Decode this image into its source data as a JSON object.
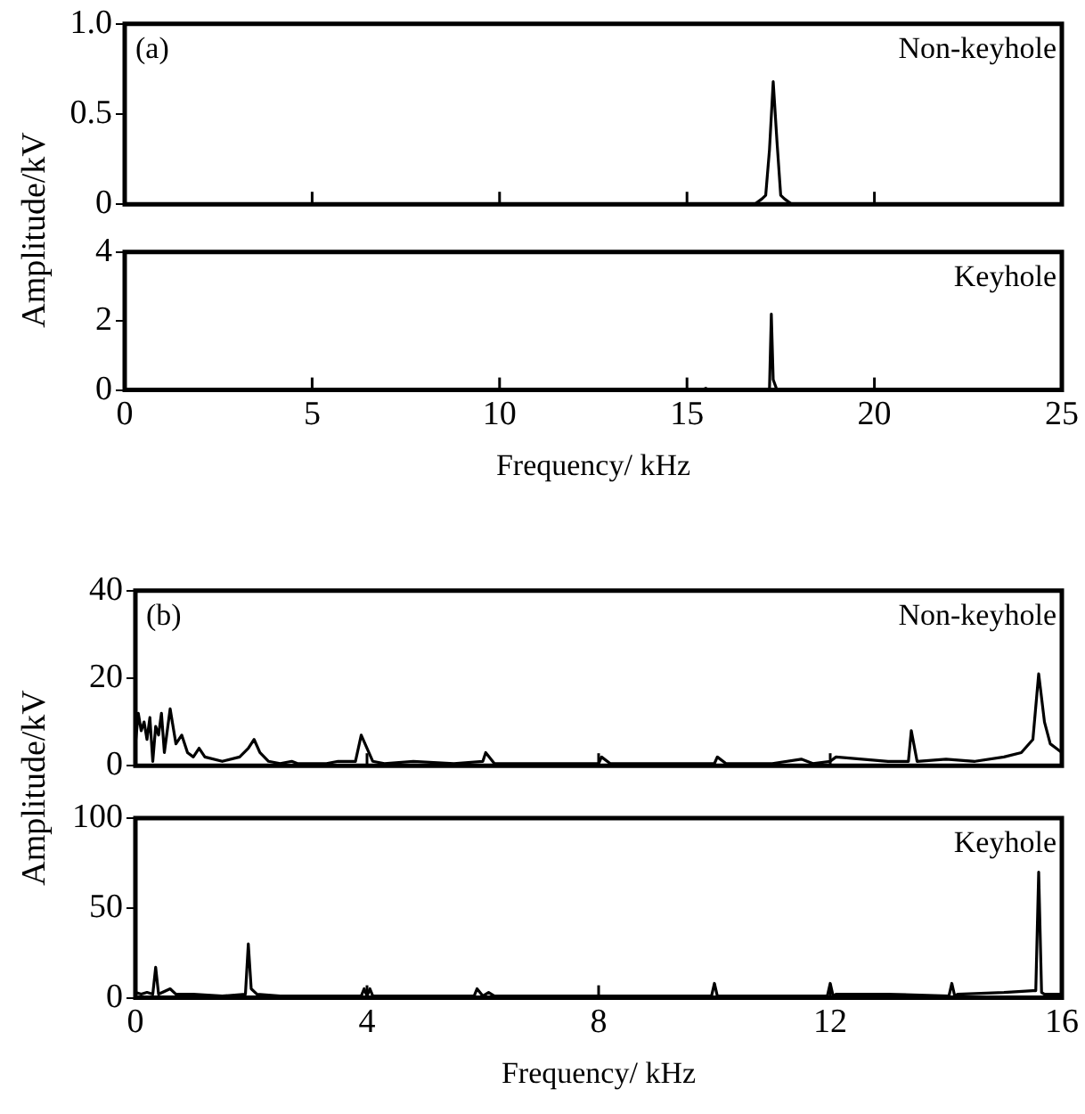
{
  "chart_data": [
    {
      "type": "line",
      "ylabel": "Amplitude/kV",
      "annotations": [
        "(a)"
      ],
      "xlim": [
        0,
        25
      ],
      "xticks": [
        0,
        5,
        10,
        15,
        20,
        25
      ],
      "ylim": [
        0,
        1
      ],
      "yticks": [
        0,
        0.5,
        {
          "value": 1,
          "label": "1.0"
        }
      ],
      "tick_labels": "y",
      "grid": false,
      "legend": false,
      "series": [
        {
          "name": "Non-keyhole",
          "color": "#000000",
          "x": [
            0,
            5,
            10,
            15,
            16.8,
            17.0,
            17.1,
            17.2,
            17.3,
            17.4,
            17.5,
            17.6,
            17.8,
            20,
            25
          ],
          "values": [
            0,
            0,
            0,
            0,
            0,
            0.03,
            0.05,
            0.3,
            0.68,
            0.35,
            0.05,
            0.03,
            0,
            0,
            0
          ]
        }
      ]
    },
    {
      "type": "line",
      "xlabel": "Frequency/ kHz",
      "xlim": [
        0,
        25
      ],
      "xticks": [
        0,
        5,
        10,
        15,
        20,
        25
      ],
      "ylim": [
        0,
        4
      ],
      "yticks": [
        0,
        2,
        4
      ],
      "grid": false,
      "legend": false,
      "series": [
        {
          "name": "Keyhole",
          "color": "#000000",
          "x": [
            0,
            15.4,
            15.5,
            15.6,
            17.2,
            17.25,
            17.3,
            17.4,
            25
          ],
          "values": [
            0,
            0,
            0.05,
            0,
            0,
            2.2,
            0.3,
            0,
            0
          ]
        }
      ]
    },
    {
      "type": "line",
      "ylabel": "Amplitude/kV",
      "annotations": [
        "(b)"
      ],
      "xlim": [
        0,
        16
      ],
      "xticks": [
        0,
        4,
        8,
        12,
        16
      ],
      "ylim": [
        0,
        40
      ],
      "yticks": [
        0,
        20,
        40
      ],
      "tick_labels": "y",
      "grid": false,
      "legend": false,
      "series": [
        {
          "name": "Non-keyhole",
          "color": "#000000",
          "x": [
            0,
            0.05,
            0.1,
            0.15,
            0.2,
            0.25,
            0.3,
            0.35,
            0.4,
            0.45,
            0.5,
            0.55,
            0.6,
            0.7,
            0.8,
            0.9,
            1.0,
            1.1,
            1.2,
            1.5,
            1.8,
            1.95,
            2.05,
            2.15,
            2.3,
            2.5,
            2.7,
            2.8,
            3.0,
            3.3,
            3.5,
            3.8,
            3.9,
            4.0,
            4.1,
            4.3,
            4.8,
            5.5,
            6.0,
            6.05,
            6.2,
            7.0,
            8.0,
            8.05,
            8.2,
            9.0,
            10.0,
            10.05,
            10.2,
            11.0,
            11.5,
            11.7,
            12.0,
            12.1,
            13.0,
            13.35,
            13.4,
            13.5,
            14.0,
            14.5,
            15.0,
            15.3,
            15.5,
            15.6,
            15.7,
            15.8,
            15.9,
            16.0
          ],
          "values": [
            5,
            12,
            8,
            10,
            6,
            11,
            1,
            9,
            7,
            12,
            3,
            8,
            13,
            5,
            7,
            3,
            2,
            4,
            2,
            1,
            2,
            4,
            6,
            3,
            1,
            0.5,
            1,
            0.5,
            0.5,
            0.5,
            1,
            1,
            7,
            4,
            1,
            0.5,
            1,
            0.5,
            1,
            3,
            0.5,
            0.5,
            0.5,
            2,
            0.5,
            0.5,
            0.5,
            2,
            0.5,
            0.5,
            1.5,
            0.5,
            1,
            2,
            1,
            1,
            8,
            1,
            1.5,
            1,
            2,
            3,
            6,
            21,
            10,
            5,
            4,
            3
          ]
        }
      ]
    },
    {
      "type": "line",
      "xlabel": "Frequency/ kHz",
      "xlim": [
        0,
        16
      ],
      "xticks": [
        0,
        4,
        8,
        12,
        16
      ],
      "ylim": [
        0,
        100
      ],
      "yticks": [
        0,
        50,
        100
      ],
      "grid": false,
      "legend": false,
      "series": [
        {
          "name": "Keyhole",
          "color": "#000000",
          "x": [
            0,
            0.1,
            0.2,
            0.3,
            0.35,
            0.4,
            0.6,
            0.7,
            1.0,
            1.5,
            1.9,
            1.95,
            2.0,
            2.1,
            2.5,
            3.0,
            3.9,
            3.95,
            4.0,
            4.05,
            4.1,
            5,
            5.85,
            5.9,
            6.0,
            6.1,
            6.2,
            7,
            8,
            9,
            9.95,
            10.0,
            10.05,
            10.1,
            11,
            11.95,
            12.0,
            12.05,
            12.1,
            13,
            14.05,
            14.1,
            14.15,
            14.2,
            15.0,
            15.5,
            15.55,
            15.6,
            15.65,
            15.7,
            16
          ],
          "values": [
            3,
            2,
            3,
            2,
            17,
            2,
            5,
            2,
            2,
            1,
            2,
            30,
            5,
            2,
            1,
            1,
            1,
            5,
            1,
            5,
            1,
            1,
            1,
            5,
            1,
            3,
            1,
            1,
            1,
            1,
            1,
            8,
            1,
            1,
            1,
            1,
            8,
            1,
            2,
            2,
            1,
            8,
            1,
            2,
            3,
            4,
            4,
            70,
            3,
            2,
            2
          ]
        }
      ]
    }
  ]
}
